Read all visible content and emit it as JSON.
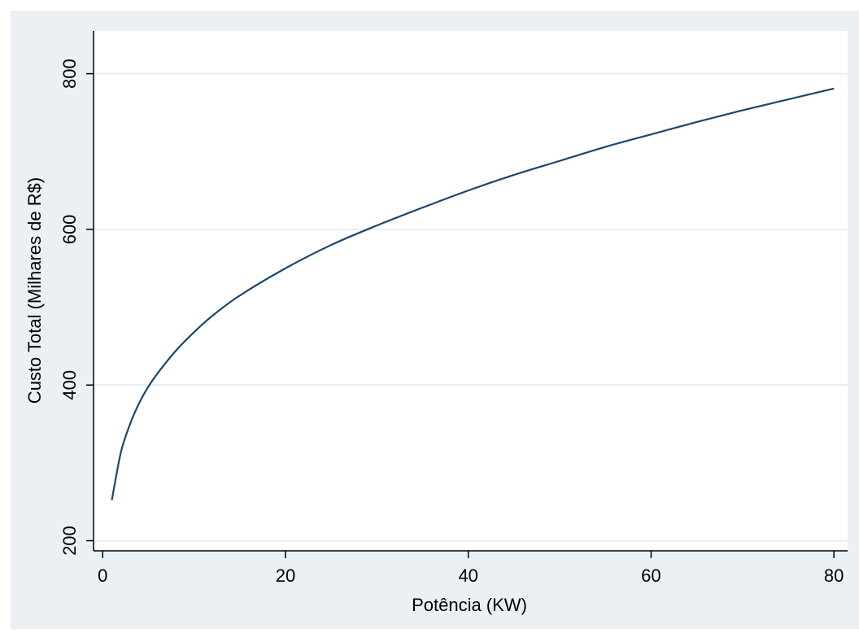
{
  "chart_data": {
    "type": "line",
    "title": "",
    "xlabel": "Potência (KW)",
    "ylabel": "Custo Total (Milhares de R$)",
    "xlim": [
      -1,
      81.5
    ],
    "ylim": [
      187,
      855
    ],
    "x_ticks": [
      0,
      20,
      40,
      60,
      80
    ],
    "y_ticks": [
      200,
      400,
      600,
      800
    ],
    "grid": "horizontal",
    "legend": "none",
    "series": [
      {
        "x": [
          1,
          2,
          3,
          4,
          5,
          6,
          8,
          10,
          12,
          15,
          20,
          25,
          30,
          35,
          40,
          45,
          50,
          55,
          60,
          65,
          70,
          75,
          80
        ],
        "y": [
          252,
          314,
          350,
          377,
          398,
          415,
          444,
          468,
          489,
          515,
          550,
          580,
          605,
          628,
          650,
          670,
          688,
          706,
          722,
          738,
          753,
          767,
          781
        ]
      }
    ]
  },
  "colors": {
    "outer_background": "#eaf0f3",
    "plot_background": "#ffffff",
    "gridline": "#e8eef1",
    "series_line": "#1a476f",
    "axis": "#000000"
  }
}
